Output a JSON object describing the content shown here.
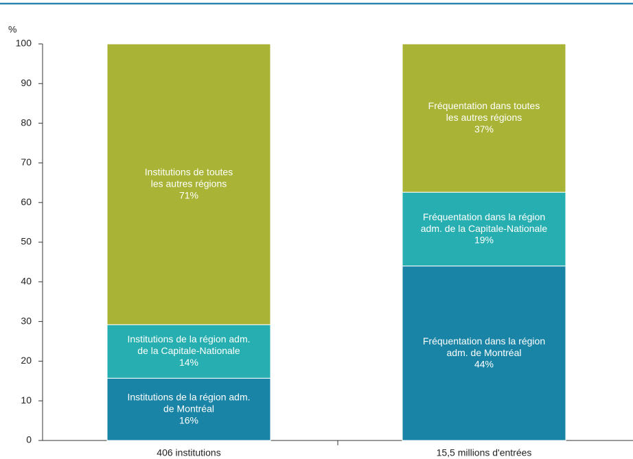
{
  "chart_data": {
    "type": "stacked_bar",
    "y_label": "%",
    "categories": [
      "406 institutions",
      "15,5 millions d'entrées"
    ],
    "ylim": [
      0,
      100
    ],
    "yticks": [
      0,
      10,
      20,
      30,
      40,
      50,
      60,
      70,
      80,
      90,
      100
    ],
    "series": [
      {
        "color": "#1a84a6",
        "values": [
          15.7,
          44
        ],
        "value_labels": [
          "16%",
          "44%"
        ],
        "segment_labels": [
          "Institutions de la région adm.\nde Montréal",
          "Fréquentation dans la région\nadm. de Montréal"
        ]
      },
      {
        "color": "#26aeb0",
        "values": [
          13.5,
          18.6
        ],
        "value_labels": [
          "14%",
          "19%"
        ],
        "segment_labels": [
          "Institutions de la région adm.\nde la Capitale-Nationale",
          "Fréquentation dans la région\nadm. de la Capitale-Nationale"
        ]
      },
      {
        "color": "#a9b436",
        "values": [
          70.8,
          37.4
        ],
        "value_labels": [
          "71%",
          "37%"
        ],
        "segment_labels": [
          "Institutions de toutes\nles autres régions",
          "Fréquentation dans toutes\nles autres régions"
        ]
      }
    ]
  }
}
